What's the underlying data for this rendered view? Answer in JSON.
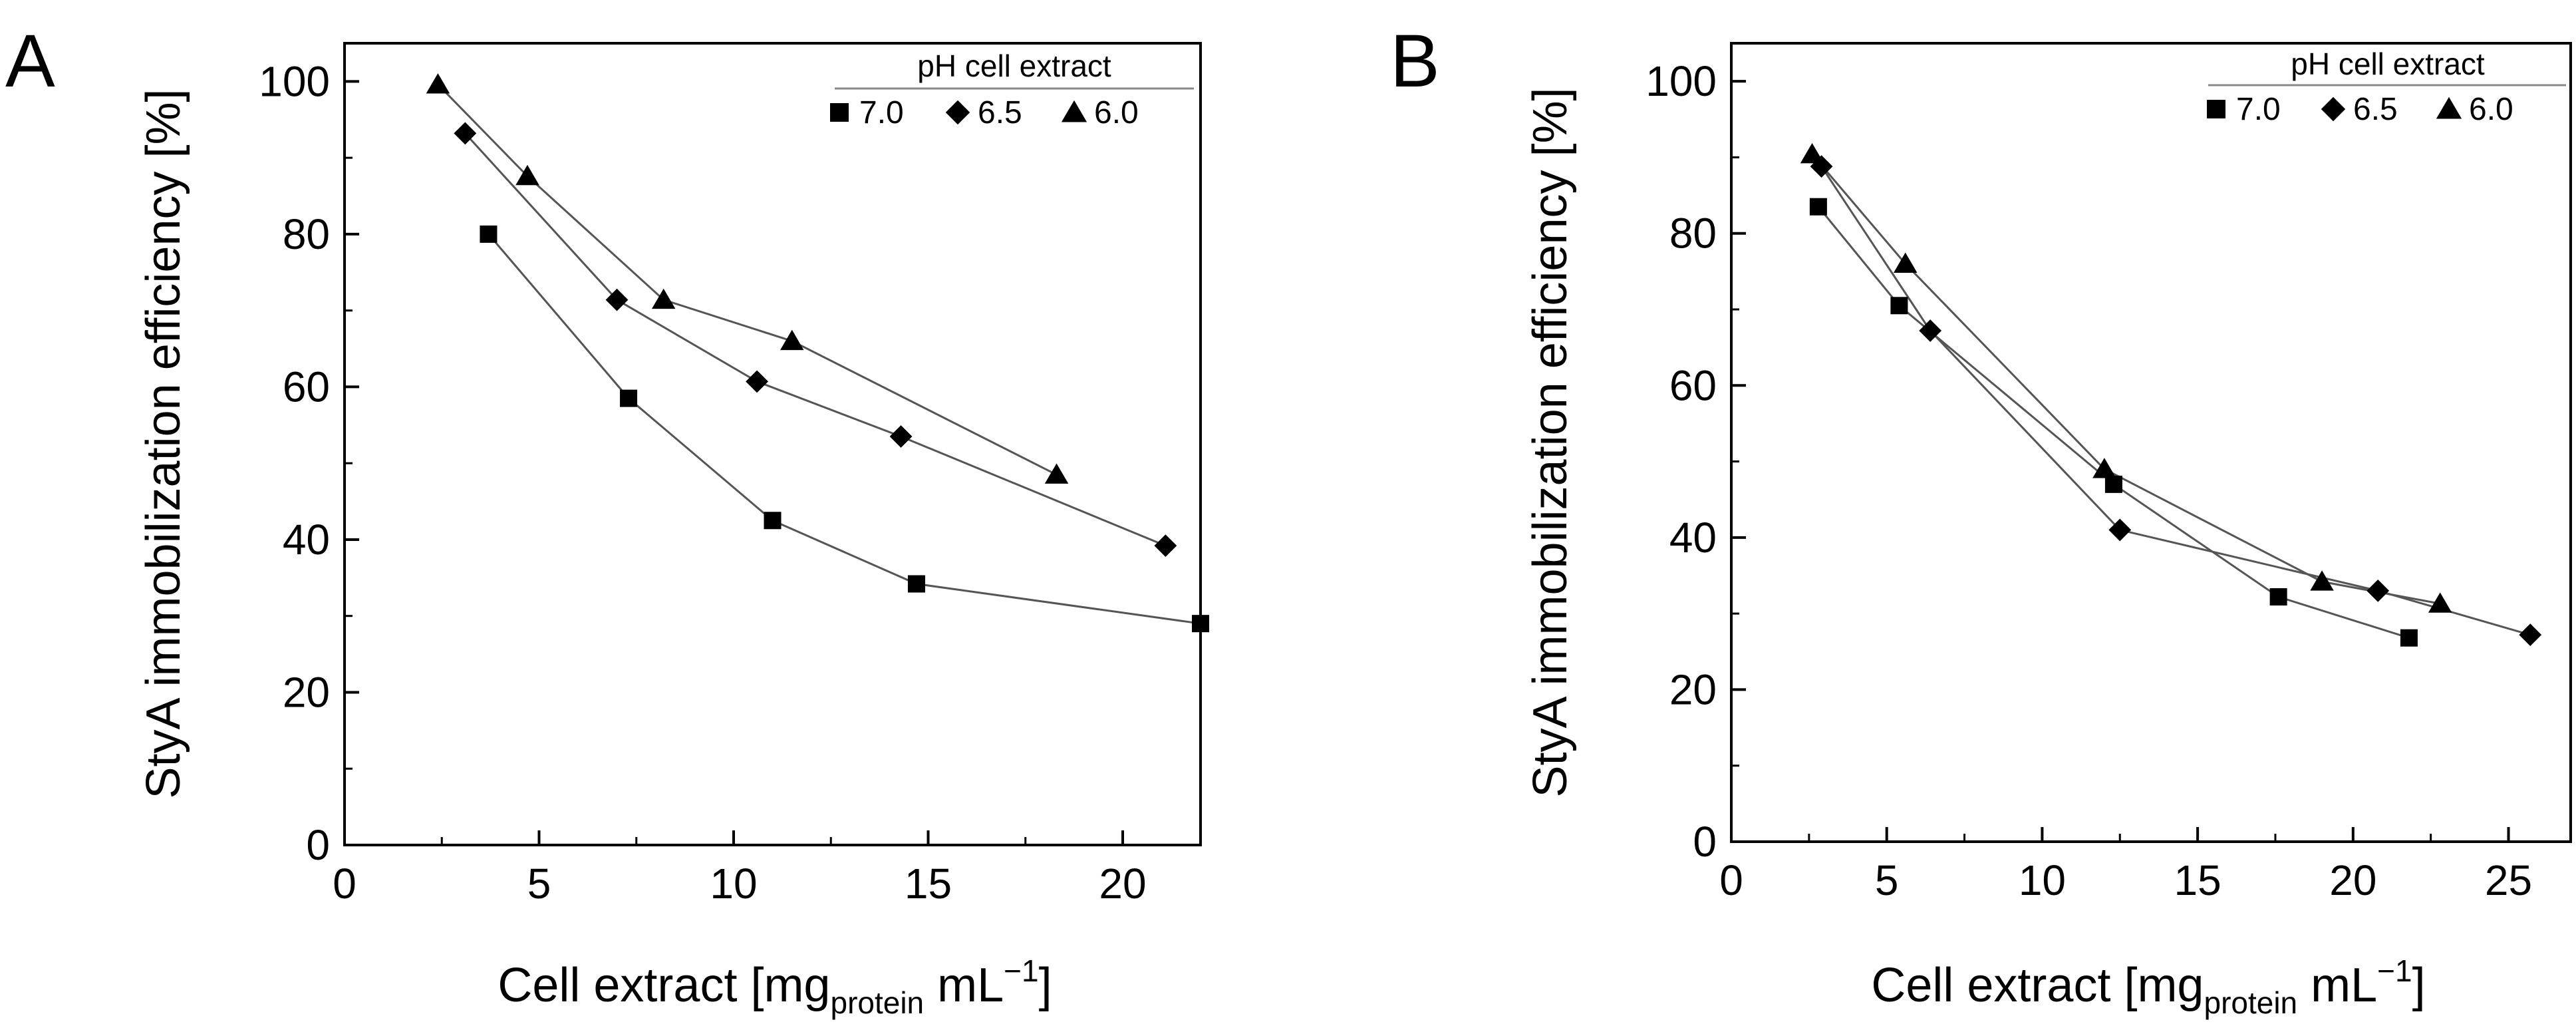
{
  "colors": {
    "marker": "#000000",
    "line": "#555555",
    "frame": "#000000",
    "legend_rule": "#888888"
  },
  "chart_data": [
    {
      "panel": "A",
      "type": "line",
      "xlabel": {
        "main": "Cell extract  [mg",
        "sub": "protein",
        "mid": " mL",
        "sup": "−1",
        "end": "]"
      },
      "ylabel": "StyA immobilization efficiency [%]",
      "xlim": [
        0,
        22
      ],
      "ylim": [
        0,
        105
      ],
      "xticks": [
        0,
        5,
        10,
        15,
        20
      ],
      "yticks": [
        0,
        20,
        40,
        60,
        80,
        100
      ],
      "legend": {
        "title": "pH cell extract",
        "position": "top-right"
      },
      "series": [
        {
          "name": "7.0",
          "marker": "square",
          "x": [
            3.7,
            7.3,
            11.0,
            14.7,
            22.0
          ],
          "y": [
            80.0,
            58.5,
            42.5,
            34.2,
            29.0
          ]
        },
        {
          "name": "6.5",
          "marker": "diamond",
          "x": [
            3.1,
            7.0,
            10.6,
            14.3,
            21.1
          ],
          "y": [
            93.2,
            71.4,
            60.7,
            53.5,
            39.2
          ]
        },
        {
          "name": "6.0",
          "marker": "triangle",
          "x": [
            2.4,
            4.7,
            8.2,
            11.5,
            18.3
          ],
          "y": [
            99.6,
            87.6,
            71.4,
            66.0,
            48.5
          ]
        }
      ]
    },
    {
      "panel": "B",
      "type": "line",
      "xlabel": {
        "main": "Cell extract  [mg",
        "sub": "protein",
        "mid": " mL",
        "sup": "−1",
        "end": "]"
      },
      "ylabel": "StyA immobilization efficiency [%]",
      "xlim": [
        0,
        27
      ],
      "ylim": [
        0,
        105
      ],
      "xticks": [
        0,
        5,
        10,
        15,
        20,
        25
      ],
      "yticks": [
        0,
        20,
        40,
        60,
        80,
        100
      ],
      "legend": {
        "title": "pH cell extract",
        "position": "top-right"
      },
      "series": [
        {
          "name": "7.0",
          "marker": "square",
          "x": [
            2.8,
            5.4,
            12.3,
            17.6,
            21.8
          ],
          "y": [
            83.5,
            70.5,
            47.0,
            32.2,
            26.8
          ]
        },
        {
          "name": "6.5",
          "marker": "diamond",
          "x": [
            2.9,
            6.4,
            12.5,
            20.8,
            25.7
          ],
          "y": [
            88.8,
            67.2,
            41.0,
            33.0,
            27.2
          ]
        },
        {
          "name": "6.0",
          "marker": "triangle",
          "x": [
            2.6,
            5.6,
            12.0,
            19.0,
            22.8
          ],
          "y": [
            90.4,
            76.0,
            49.0,
            34.2,
            31.3
          ]
        }
      ]
    }
  ]
}
